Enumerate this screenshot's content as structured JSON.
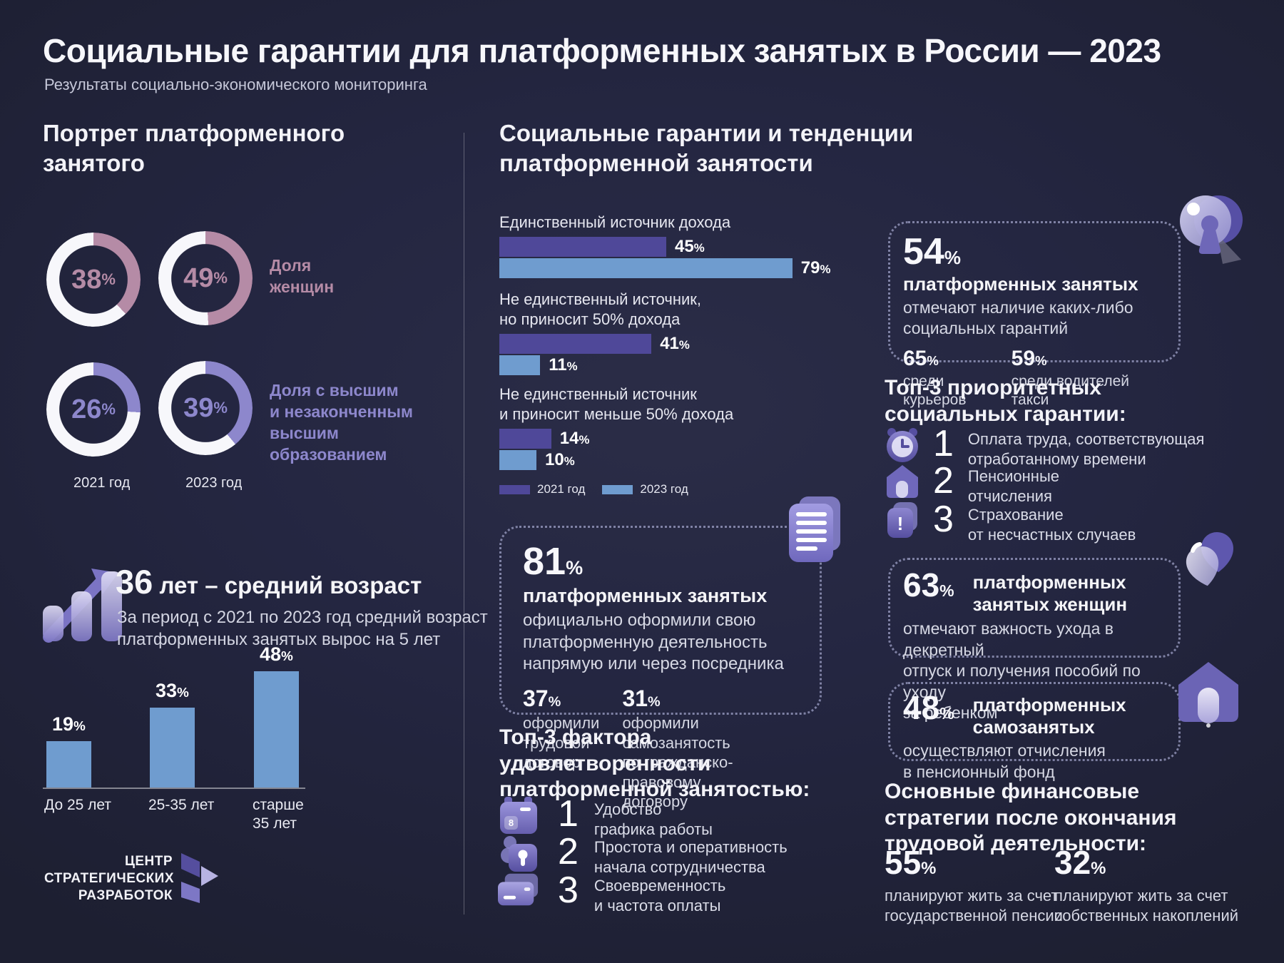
{
  "units": {
    "percent": "%"
  },
  "colors": {
    "background": "#232539",
    "bar_2021": "#4f4899",
    "bar_2023": "#6f9ccf",
    "pink": "#b58ba6",
    "lavender": "#8d87cc",
    "donut_rest": "#f7f7fb"
  },
  "header": {
    "title": "Социальные гарантии для платформенных занятых в России — 2023",
    "subtitle": "Результаты социально-экономического мониторинга"
  },
  "chart_data": [
    {
      "type": "pie",
      "subtype": "donut",
      "id": "women_share",
      "title": "Доля женщин",
      "categories": [
        "2021 год",
        "2023 год"
      ],
      "values": [
        38,
        49
      ],
      "unit": "%"
    },
    {
      "type": "pie",
      "subtype": "donut",
      "id": "higher_education_share",
      "title": "Доля с высшим и незаконченным высшим образованием",
      "categories": [
        "2021 год",
        "2023 год"
      ],
      "values": [
        26,
        39
      ],
      "unit": "%"
    },
    {
      "type": "bar",
      "id": "age_structure",
      "title": "36 лет – средний возраст",
      "categories": [
        "До 25 лет",
        "25-35 лет",
        "старше 35 лет"
      ],
      "values": [
        19,
        33,
        48
      ],
      "unit": "%",
      "ylim": [
        0,
        50
      ],
      "grid": false
    },
    {
      "type": "bar",
      "orientation": "horizontal",
      "id": "platform_income_role",
      "title": "",
      "categories": [
        "Единственный источник дохода",
        "Не единственный источник, но приносит 50% дохода",
        "Не единственный источник и приносит меньше 50% дохода"
      ],
      "series": [
        {
          "name": "2021 год",
          "values": [
            45,
            41,
            14
          ]
        },
        {
          "name": "2023 год",
          "values": [
            79,
            11,
            10
          ]
        }
      ],
      "unit": "%",
      "xlim": [
        0,
        100
      ],
      "legend_position": "bottom"
    }
  ],
  "left": {
    "title": "Портрет платформенного\nзанятого",
    "women_label": "Доля\nженщин",
    "education_label": "Доля с высшим\nи незаконченным\nвысшим\nобразованием",
    "age": {
      "number": "36",
      "headline": " лет – средний возраст",
      "description": "За период с 2021 по 2023 год средний возраст\nплатформенных занятых вырос на 5 лет"
    },
    "logo_text": "ЦЕНТР\nСТРАТЕГИЧЕСКИХ\nРАЗРАБОТОК"
  },
  "middle": {
    "title": "Социальные гарантии и тенденции\nплатформенной занятости",
    "income_groups": [
      {
        "label": "Единственный источник дохода"
      },
      {
        "label": "Не единственный источник,\nно приносит 50% дохода"
      },
      {
        "label": "Не единственный источник\nи приносит меньше 50% дохода"
      }
    ],
    "registered": {
      "value": "81",
      "bold": "платформенных занятых",
      "text": "официально оформили свою\nплатформенную деятельность\nнапрямую или через посредника",
      "stats": [
        {
          "value": "37",
          "text": "оформили\nтрудовой\nдоговор"
        },
        {
          "value": "31",
          "text": "оформили самозанятость\nпо гражданско-правовому\nдоговору"
        }
      ]
    },
    "factors": {
      "title": "Топ-3 фактора\nудовлетворенности\nплатформенной занятостью:",
      "items": [
        {
          "num": "1",
          "text": "Удобство\nграфика работы",
          "icon": "calendar-icon"
        },
        {
          "num": "2",
          "text": "Простота и оперативность\nначала сотрудничества",
          "icon": "person-lock-icon"
        },
        {
          "num": "3",
          "text": "Своевременность\nи частота оплаты",
          "icon": "bank-card-icon"
        }
      ]
    }
  },
  "right": {
    "guarantees": {
      "value": "54",
      "bold": "платформенных занятых",
      "text": "отмечают наличие каких-либо\nсоциальных гарантий",
      "stats": [
        {
          "value": "65",
          "text": "среди курьеров"
        },
        {
          "value": "59",
          "text": "среди водителей такси"
        }
      ]
    },
    "priorities": {
      "title": "Топ-3 приоритетных\nсоциальных гарантии:",
      "items": [
        {
          "num": "1",
          "text": "Оплата труда, соответствующая\nотработанному времени",
          "icon": "clock-icon"
        },
        {
          "num": "2",
          "text": "Пенсионные\nотчисления",
          "icon": "house-icon"
        },
        {
          "num": "3",
          "text": "Страхование\nот несчастных случаев",
          "icon": "document-warning-icon"
        }
      ]
    },
    "maternity": {
      "value": "63",
      "bold": "платформенных\nзанятых женщин",
      "text": "отмечают важность ухода в декретный\nотпуск и получения пособий по уходу\nза ребенком"
    },
    "pension": {
      "value": "48",
      "bold": "платформенных\nсамозанятых",
      "text": "осуществляют отчисления\nв пенсионный фонд"
    },
    "finance": {
      "title": "Основные финансовые\nстратегии после окончания\nтрудовой деятельности:",
      "items": [
        {
          "value": "55",
          "text": "планируют жить за счет\nгосударственной пенсии"
        },
        {
          "value": "32",
          "text": "планируют жить за счет\nсобственных накоплений"
        }
      ]
    }
  },
  "icon_labels": {
    "calendar_day": "8",
    "warning": "!"
  }
}
